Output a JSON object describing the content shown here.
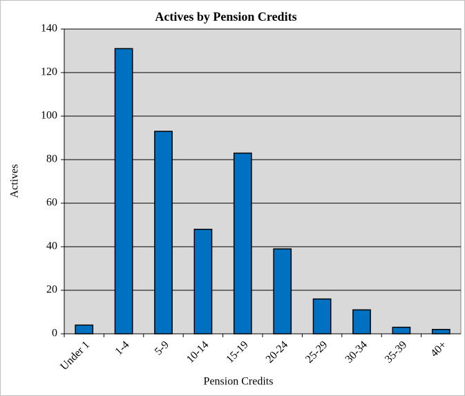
{
  "chart_data": {
    "type": "bar",
    "title": "Actives by Pension Credits",
    "x_label": "Pension Credits",
    "y_label": "Actives",
    "categories": [
      "Under 1",
      "1-4",
      "5-9",
      "10-14",
      "15-19",
      "20-24",
      "25-29",
      "30-34",
      "35-39",
      "40+"
    ],
    "values": [
      4,
      131,
      93,
      48,
      83,
      39,
      16,
      11,
      3,
      2
    ],
    "color": "#0070c0",
    "ylim": [
      0,
      140
    ],
    "yticks": [
      0,
      20,
      40,
      60,
      80,
      100,
      120,
      140
    ],
    "grid": true
  }
}
